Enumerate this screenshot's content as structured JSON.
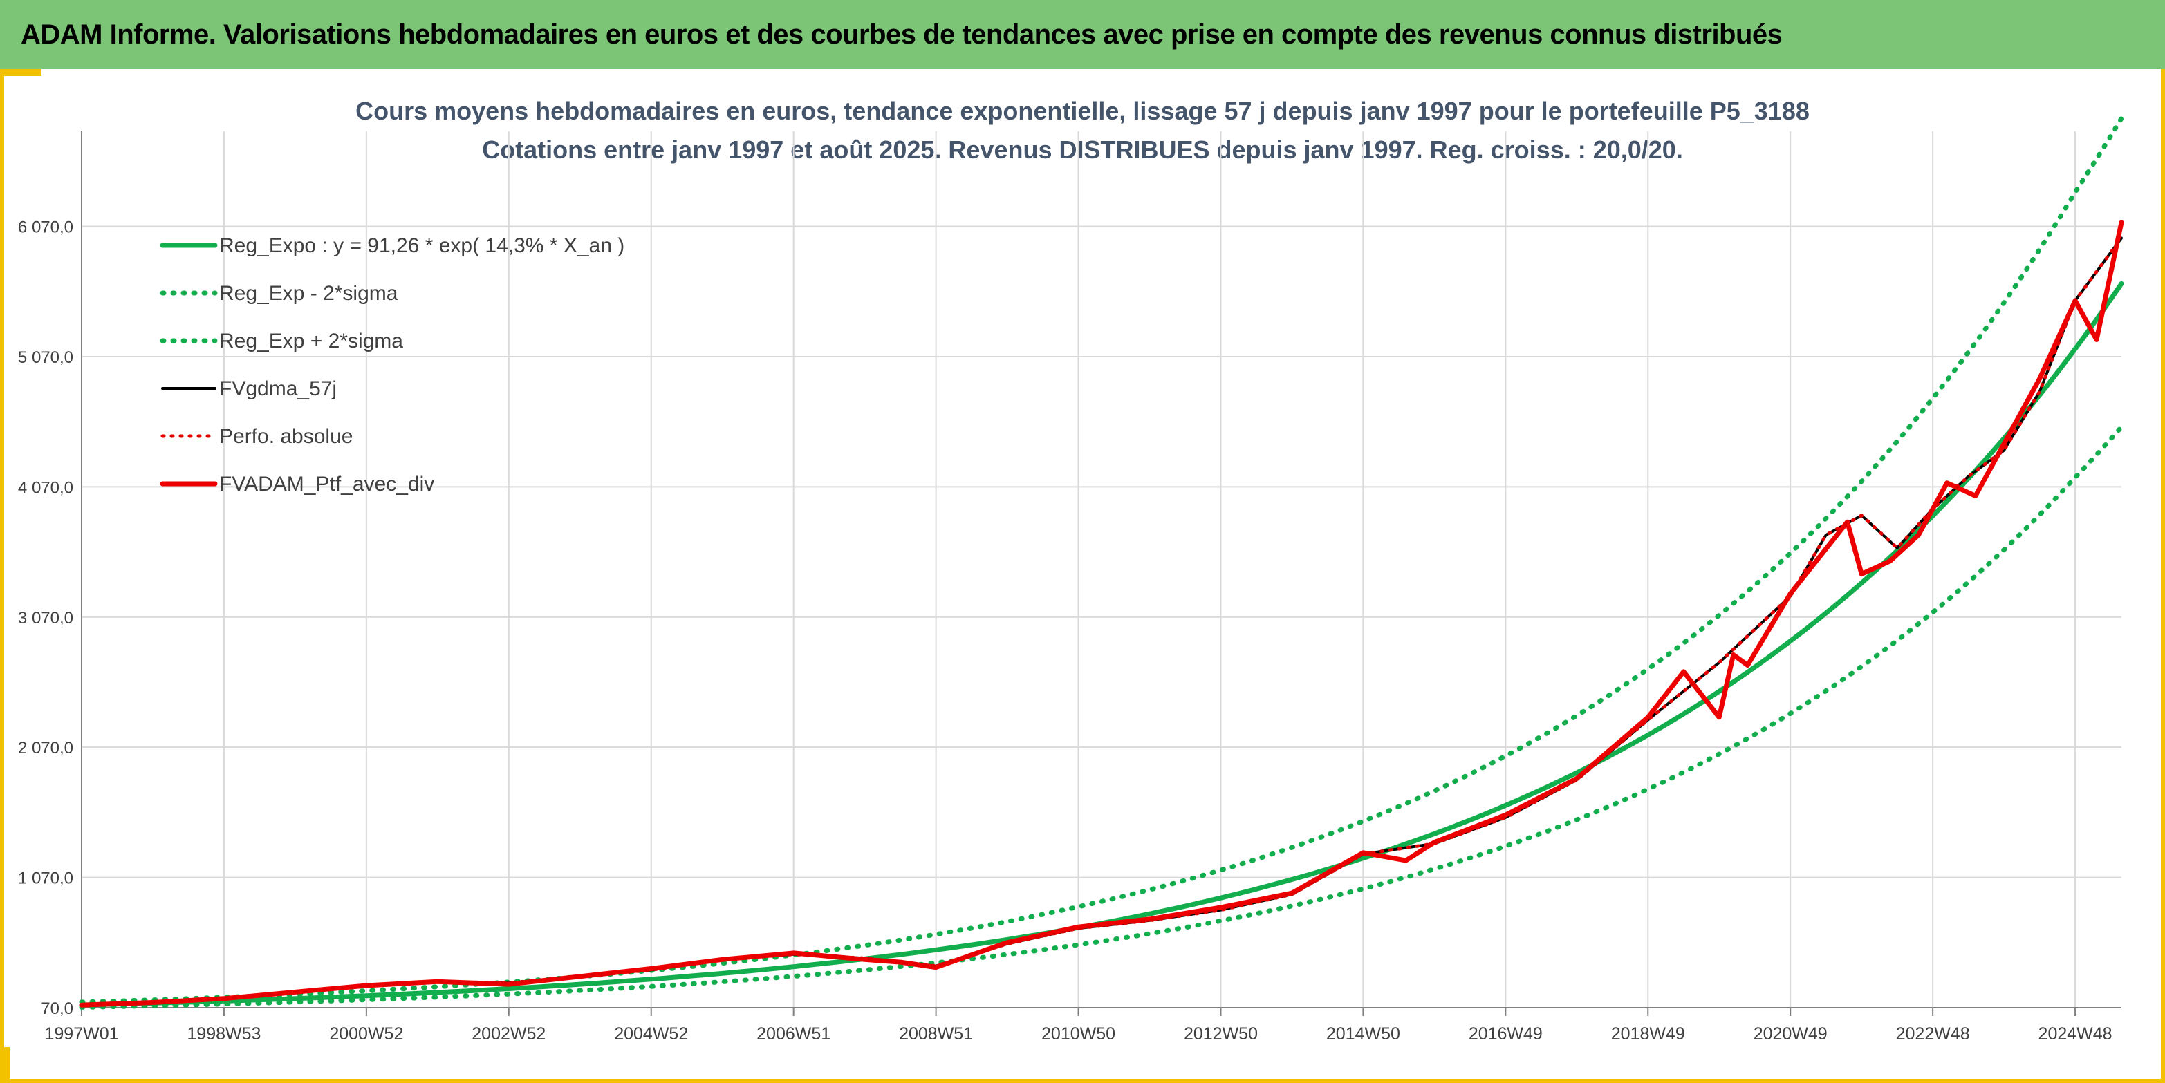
{
  "banner": {
    "title": "ADAM Informe. Valorisations hebdomadaires en euros et des courbes de tendances avec prise en compte des revenus connus distribués"
  },
  "colors": {
    "banner_bg": "#7cc576",
    "accent_frame": "#f2c200",
    "title_text": "#44546a",
    "reg_expo": "#12ad4d",
    "fvgdma": "#000000",
    "perfo": "#e00000",
    "fvadam": "#ee0000",
    "grid": "#d9d9d9"
  },
  "chart_data": {
    "type": "line",
    "title": "Cours moyens hebdomadaires en euros, tendance exponentielle, lissage 57 j depuis janv 1997 pour le portefeuille P5_3188",
    "subtitle": "Cotations entre janv 1997 et août 2025. Revenus DISTRIBUES depuis janv 1997. Reg. croiss. : 20,0/20.",
    "xlabel": "",
    "ylabel": "",
    "ylim": [
      70,
      6800
    ],
    "xlim": [
      1997.0,
      2025.65
    ],
    "grid": true,
    "legend_position": "top-left",
    "y_ticks": [
      70,
      1070,
      2070,
      3070,
      4070,
      5070,
      6070
    ],
    "y_tick_labels": [
      "70,0",
      "1 070,0",
      "2 070,0",
      "3 070,0",
      "4 070,0",
      "5 070,0",
      "6 070,0"
    ],
    "x_tick_labels": [
      "1997W01",
      "1998W53",
      "2000W52",
      "2002W52",
      "2004W52",
      "2006W51",
      "2008W51",
      "2010W50",
      "2012W50",
      "2014W50",
      "2016W49",
      "2018W49",
      "2020W49",
      "2022W48",
      "2024W48"
    ],
    "x_tick_positions": [
      1997.0,
      1999.0,
      2001.0,
      2003.0,
      2005.0,
      2007.0,
      2009.0,
      2011.0,
      2013.0,
      2015.0,
      2017.0,
      2019.0,
      2021.0,
      2023.0,
      2025.0
    ],
    "series": [
      {
        "name": "Reg_Expo : y = 91,26 * exp( 14,3% *  X_an )",
        "style": "solid-green",
        "x": [
          1997.0,
          1999.0,
          2001.0,
          2003.0,
          2005.0,
          2007.0,
          2009.0,
          2011.0,
          2013.0,
          2015.0,
          2017.0,
          2019.0,
          2021.0,
          2023.0,
          2025.0,
          2025.65
        ],
        "values": [
          91,
          121,
          162,
          216,
          289,
          385,
          514,
          685,
          913,
          1218,
          1623,
          2164,
          2885,
          3847,
          5129,
          5630
        ]
      },
      {
        "name": "Reg_Exp - 2*sigma",
        "style": "dotted-green",
        "x": [
          1997.0,
          1999.0,
          2001.0,
          2003.0,
          2005.0,
          2007.0,
          2009.0,
          2011.0,
          2013.0,
          2015.0,
          2017.0,
          2019.0,
          2021.0,
          2023.0,
          2025.0,
          2025.65
        ],
        "values": [
          73,
          98,
          131,
          175,
          233,
          311,
          415,
          553,
          737,
          983,
          1310,
          1748,
          2329,
          3106,
          4142,
          4530
        ]
      },
      {
        "name": "Reg_Exp + 2*sigma",
        "style": "dotted-green",
        "x": [
          1997.0,
          1999.0,
          2001.0,
          2003.0,
          2005.0,
          2007.0,
          2009.0,
          2011.0,
          2013.0,
          2015.0,
          2017.0,
          2019.0,
          2021.0,
          2023.0,
          2025.0,
          2025.65
        ],
        "values": [
          113,
          150,
          200,
          267,
          356,
          475,
          633,
          845,
          1126,
          1502,
          2003,
          2671,
          3561,
          4749,
          6332,
          6900
        ]
      },
      {
        "name": "FVgdma_57j",
        "style": "solid-black",
        "x": [
          1997.0,
          1998.0,
          1999.0,
          2000.0,
          2001.0,
          2002.0,
          2003.0,
          2004.0,
          2005.0,
          2006.0,
          2007.0,
          2008.0,
          2009.0,
          2010.0,
          2011.0,
          2012.0,
          2013.0,
          2014.0,
          2015.0,
          2016.0,
          2017.0,
          2018.0,
          2019.0,
          2020.0,
          2021.0,
          2021.5,
          2022.0,
          2022.5,
          2023.0,
          2023.5,
          2024.0,
          2024.5,
          2025.0,
          2025.65
        ],
        "values": [
          90,
          110,
          140,
          190,
          240,
          270,
          260,
          310,
          360,
          440,
          480,
          450,
          390,
          560,
          680,
          740,
          820,
          940,
          1250,
          1330,
          1530,
          1820,
          2280,
          2720,
          3230,
          3700,
          3850,
          3600,
          3900,
          4150,
          4350,
          4800,
          5500,
          5980
        ]
      },
      {
        "name": "Perfo. absolue",
        "style": "dotted-red",
        "x": [
          1997.0,
          1998.0,
          1999.0,
          2000.0,
          2001.0,
          2002.0,
          2003.0,
          2004.0,
          2005.0,
          2006.0,
          2007.0,
          2008.0,
          2009.0,
          2010.0,
          2011.0,
          2012.0,
          2013.0,
          2014.0,
          2015.0,
          2016.0,
          2017.0,
          2018.0,
          2019.0,
          2020.0,
          2021.0,
          2021.5,
          2022.0,
          2022.5,
          2023.0,
          2023.5,
          2024.0,
          2024.5,
          2025.0,
          2025.65
        ],
        "values": [
          90,
          110,
          140,
          190,
          240,
          270,
          260,
          310,
          360,
          440,
          480,
          450,
          390,
          560,
          680,
          740,
          820,
          940,
          1250,
          1330,
          1530,
          1820,
          2280,
          2720,
          3230,
          3700,
          3850,
          3600,
          3900,
          4150,
          4350,
          4800,
          5500,
          5980
        ]
      },
      {
        "name": "FVADAM_Ptf_avec_div",
        "style": "solid-red",
        "x": [
          1997.0,
          1998.0,
          1999.0,
          2000.0,
          2001.0,
          2002.0,
          2003.0,
          2004.0,
          2005.0,
          2006.0,
          2007.0,
          2008.0,
          2008.5,
          2009.0,
          2010.0,
          2011.0,
          2012.0,
          2013.0,
          2014.0,
          2015.0,
          2015.6,
          2016.0,
          2017.0,
          2018.0,
          2019.0,
          2019.5,
          2020.0,
          2020.2,
          2020.4,
          2021.0,
          2021.8,
          2022.0,
          2022.4,
          2022.8,
          2023.2,
          2023.6,
          2024.0,
          2024.5,
          2025.0,
          2025.3,
          2025.65
        ],
        "values": [
          90,
          110,
          140,
          190,
          240,
          270,
          250,
          310,
          370,
          440,
          490,
          440,
          420,
          380,
          570,
          690,
          750,
          840,
          950,
          1260,
          1200,
          1340,
          1550,
          1830,
          2300,
          2650,
          2300,
          2780,
          2700,
          3250,
          3800,
          3400,
          3500,
          3700,
          4100,
          4000,
          4400,
          4900,
          5500,
          5200,
          6100
        ]
      }
    ]
  }
}
